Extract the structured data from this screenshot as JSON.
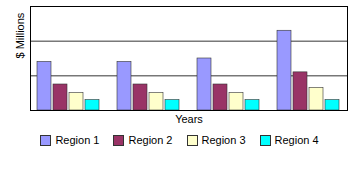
{
  "chart_data": {
    "type": "bar",
    "x_label": "Years",
    "y_label": "$ Millions",
    "categories": [
      null,
      null,
      null,
      null
    ],
    "series": [
      {
        "name": "Region 1",
        "color": "#9999ff",
        "values": [
          1.4,
          1.4,
          1.5,
          2.3
        ]
      },
      {
        "name": "Region 2",
        "color": "#993366",
        "values": [
          0.75,
          0.75,
          0.75,
          1.1
        ]
      },
      {
        "name": "Region 3",
        "color": "#ffffcc",
        "values": [
          0.5,
          0.5,
          0.5,
          0.65
        ]
      },
      {
        "name": "Region 4",
        "color": "#00ffff",
        "values": [
          0.3,
          0.3,
          0.3,
          0.3
        ]
      }
    ],
    "ylim": [
      0,
      3
    ],
    "yticks": [
      0,
      1,
      2,
      3
    ],
    "grid": true,
    "tick_labels": false,
    "legend": "bottom"
  }
}
